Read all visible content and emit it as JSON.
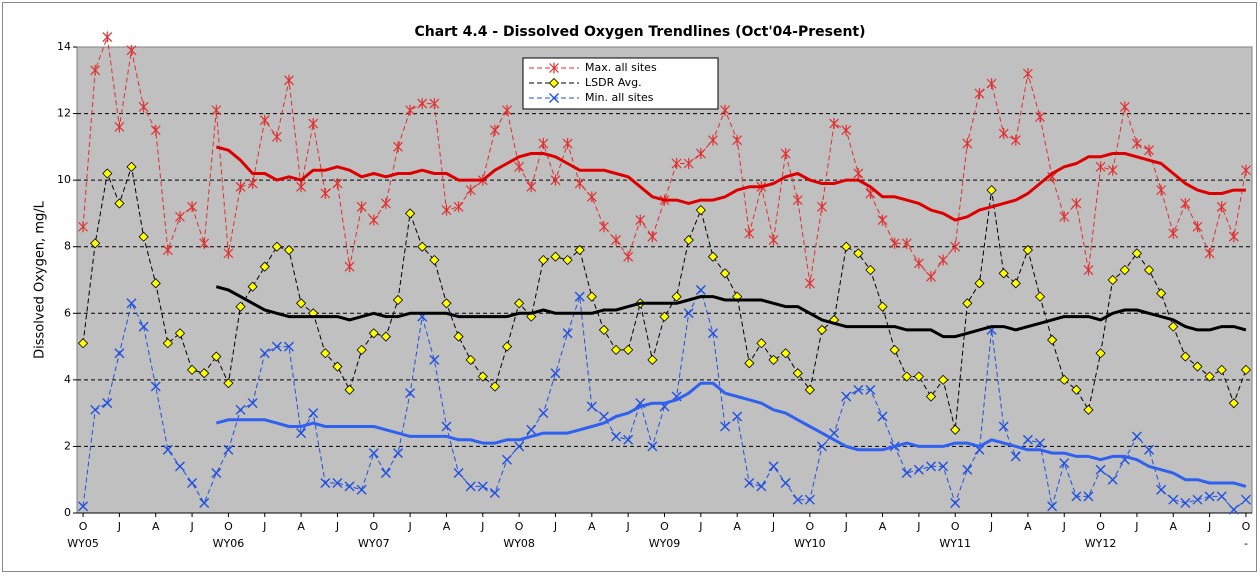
{
  "chart_data": {
    "type": "line",
    "title": "Chart 4.4 - Dissolved Oxygen Trendlines (Oct'04-Present)",
    "y_label": "Dissolved Oxygen, mg/L",
    "categories": [
      "O",
      null,
      null,
      "J",
      null,
      null,
      "A",
      null,
      null,
      "J",
      null,
      null,
      "O",
      null,
      null,
      "J",
      null,
      null,
      "A",
      null,
      null,
      "J",
      null,
      null,
      "O",
      null,
      null,
      "J",
      null,
      null,
      "A",
      null,
      null,
      "J",
      null,
      null,
      "O",
      null,
      null,
      "J",
      null,
      null,
      "A",
      null,
      null,
      "J",
      null,
      null,
      "O",
      null,
      null,
      "J",
      null,
      null,
      "A",
      null,
      null,
      "J",
      null,
      null,
      "O",
      null,
      null,
      "J",
      null,
      null,
      "A",
      null,
      null,
      "J",
      null,
      null,
      "O",
      null,
      null,
      "J",
      null,
      null,
      "A",
      null,
      null,
      "J",
      null,
      null,
      "O",
      null,
      null,
      "J",
      null,
      null,
      "A",
      null,
      null,
      "J",
      null,
      null,
      "O"
    ],
    "group_labels": [
      "WY05",
      "WY06",
      "WY07",
      "WY08",
      "WY09",
      "WY10",
      "WY11",
      "WY12",
      "-"
    ],
    "ylim": [
      0,
      14
    ],
    "yticks": [
      0,
      2,
      4,
      6,
      8,
      10,
      12,
      14
    ],
    "grid": true,
    "legend": "top",
    "series": [
      {
        "name": "Max. all sites",
        "color": "#e03030",
        "line_style": "dashed",
        "marker": "star",
        "values": [
          8.6,
          13.3,
          14.3,
          11.6,
          13.9,
          12.2,
          11.5,
          7.9,
          8.9,
          9.2,
          8.1,
          12.1,
          7.8,
          9.8,
          9.9,
          11.8,
          11.3,
          13.0,
          9.8,
          11.7,
          9.6,
          9.9,
          7.4,
          9.2,
          8.8,
          9.3,
          11.0,
          12.1,
          12.3,
          12.3,
          9.1,
          9.2,
          9.7,
          10.0,
          11.5,
          12.1,
          10.4,
          9.8,
          11.1,
          10.0,
          11.1,
          9.9,
          9.5,
          8.6,
          8.2,
          7.7,
          8.8,
          8.3,
          9.4,
          10.5,
          10.5,
          10.8,
          11.2,
          12.1,
          11.2,
          8.4,
          9.8,
          8.2,
          10.8,
          9.4,
          6.9,
          9.2,
          11.7,
          11.5,
          10.2,
          9.6,
          8.8,
          8.1,
          8.1,
          7.5,
          7.1,
          7.6,
          8.0,
          11.1,
          12.6,
          12.9,
          11.4,
          11.2,
          13.2,
          11.9,
          10.1,
          8.9,
          9.3,
          7.3,
          10.4,
          10.3,
          12.2,
          11.1,
          10.9,
          9.7,
          8.4,
          9.3,
          8.6,
          7.8,
          9.2,
          8.3,
          10.3
        ]
      },
      {
        "name": "LSDR Avg.",
        "color": "#000000",
        "line_style": "dashed",
        "marker": "diamond",
        "marker_fill": "#ffff00",
        "values": [
          5.1,
          8.1,
          10.2,
          9.3,
          10.4,
          8.3,
          6.9,
          5.1,
          5.4,
          4.3,
          4.2,
          4.7,
          3.9,
          6.2,
          6.8,
          7.4,
          8.0,
          7.9,
          6.3,
          6.0,
          4.8,
          4.4,
          3.7,
          4.9,
          5.4,
          5.3,
          6.4,
          9.0,
          8.0,
          7.6,
          6.3,
          5.3,
          4.6,
          4.1,
          3.8,
          5.0,
          6.3,
          5.9,
          7.6,
          7.7,
          7.6,
          7.9,
          6.5,
          5.5,
          4.9,
          4.9,
          6.3,
          4.6,
          5.9,
          6.5,
          8.2,
          9.1,
          7.7,
          7.2,
          6.5,
          4.5,
          5.1,
          4.6,
          4.8,
          4.2,
          3.7,
          5.5,
          5.8,
          8.0,
          7.8,
          7.3,
          6.2,
          4.9,
          4.1,
          4.1,
          3.5,
          4.0,
          2.5,
          6.3,
          6.9,
          9.7,
          7.2,
          6.9,
          7.9,
          6.5,
          5.2,
          4.0,
          3.7,
          3.1,
          4.8,
          7.0,
          7.3,
          7.8,
          7.3,
          6.6,
          5.6,
          4.7,
          4.4,
          4.1,
          4.3,
          3.3,
          4.3
        ]
      },
      {
        "name": "Min. all sites",
        "color": "#2050e0",
        "line_style": "dashed",
        "marker": "x",
        "values": [
          0.2,
          3.1,
          3.3,
          4.8,
          6.3,
          5.6,
          3.8,
          1.9,
          1.4,
          0.9,
          0.3,
          1.2,
          1.9,
          3.1,
          3.3,
          4.8,
          5.0,
          5.0,
          2.4,
          3.0,
          0.9,
          0.9,
          0.8,
          0.7,
          1.8,
          1.2,
          1.8,
          3.6,
          5.9,
          4.6,
          2.6,
          1.2,
          0.8,
          0.8,
          0.6,
          1.6,
          2.0,
          2.5,
          3.0,
          4.2,
          5.4,
          6.5,
          3.2,
          2.9,
          2.3,
          2.2,
          3.3,
          2.0,
          3.2,
          3.5,
          6.0,
          6.7,
          5.4,
          2.6,
          2.9,
          0.9,
          0.8,
          1.4,
          0.9,
          0.4,
          0.4,
          2.0,
          2.4,
          3.5,
          3.7,
          3.7,
          2.9,
          2.0,
          1.2,
          1.3,
          1.4,
          1.4,
          0.3,
          1.3,
          1.9,
          5.5,
          2.6,
          1.7,
          2.2,
          2.1,
          0.2,
          1.5,
          0.5,
          0.5,
          1.3,
          1.0,
          1.6,
          2.3,
          1.9,
          0.7,
          0.4,
          0.3,
          0.4,
          0.5,
          0.5,
          0.1,
          0.4
        ]
      },
      {
        "color": "#dd0000",
        "line_style": "solid",
        "marker": "none",
        "values": [
          null,
          null,
          null,
          null,
          null,
          null,
          null,
          null,
          null,
          null,
          null,
          11.0,
          10.9,
          10.6,
          10.2,
          10.2,
          10.0,
          10.1,
          10.0,
          10.3,
          10.3,
          10.4,
          10.3,
          10.1,
          10.2,
          10.1,
          10.2,
          10.2,
          10.3,
          10.2,
          10.2,
          10.0,
          10.0,
          10.0,
          10.3,
          10.5,
          10.7,
          10.8,
          10.8,
          10.7,
          10.5,
          10.3,
          10.3,
          10.3,
          10.2,
          10.1,
          9.8,
          9.5,
          9.4,
          9.4,
          9.3,
          9.4,
          9.4,
          9.5,
          9.7,
          9.8,
          9.8,
          9.9,
          10.1,
          10.2,
          10.0,
          9.9,
          9.9,
          10.0,
          10.0,
          9.8,
          9.5,
          9.5,
          9.4,
          9.3,
          9.1,
          9.0,
          8.8,
          8.9,
          9.1,
          9.2,
          9.3,
          9.4,
          9.6,
          9.9,
          10.2,
          10.4,
          10.5,
          10.7,
          10.7,
          10.8,
          10.8,
          10.7,
          10.6,
          10.5,
          10.2,
          9.9,
          9.7,
          9.6,
          9.6,
          9.7,
          9.7
        ]
      },
      {
        "color": "#000000",
        "line_style": "solid",
        "marker": "none",
        "values": [
          null,
          null,
          null,
          null,
          null,
          null,
          null,
          null,
          null,
          null,
          null,
          6.8,
          6.7,
          6.5,
          6.3,
          6.1,
          6.0,
          5.9,
          5.9,
          5.9,
          5.9,
          5.9,
          5.8,
          5.9,
          6.0,
          5.9,
          5.9,
          6.0,
          6.0,
          6.0,
          6.0,
          5.9,
          5.9,
          5.9,
          5.9,
          5.9,
          6.0,
          6.0,
          6.1,
          6.0,
          6.0,
          6.0,
          6.0,
          6.1,
          6.1,
          6.2,
          6.3,
          6.3,
          6.3,
          6.3,
          6.4,
          6.5,
          6.5,
          6.4,
          6.4,
          6.4,
          6.4,
          6.3,
          6.2,
          6.2,
          6.0,
          5.8,
          5.7,
          5.6,
          5.6,
          5.6,
          5.6,
          5.6,
          5.5,
          5.5,
          5.5,
          5.3,
          5.3,
          5.4,
          5.5,
          5.6,
          5.6,
          5.5,
          5.6,
          5.7,
          5.8,
          5.9,
          5.9,
          5.9,
          5.8,
          6.0,
          6.1,
          6.1,
          6.0,
          5.9,
          5.8,
          5.6,
          5.5,
          5.5,
          5.6,
          5.6,
          5.5
        ]
      },
      {
        "color": "#3060f0",
        "line_style": "solid",
        "marker": "none",
        "values": [
          null,
          null,
          null,
          null,
          null,
          null,
          null,
          null,
          null,
          null,
          null,
          2.7,
          2.8,
          2.8,
          2.8,
          2.8,
          2.7,
          2.6,
          2.6,
          2.7,
          2.6,
          2.6,
          2.6,
          2.6,
          2.6,
          2.5,
          2.4,
          2.3,
          2.3,
          2.3,
          2.3,
          2.2,
          2.2,
          2.1,
          2.1,
          2.2,
          2.2,
          2.3,
          2.4,
          2.4,
          2.4,
          2.5,
          2.6,
          2.7,
          2.9,
          3.0,
          3.2,
          3.3,
          3.3,
          3.4,
          3.6,
          3.9,
          3.9,
          3.6,
          3.5,
          3.4,
          3.3,
          3.1,
          3.0,
          2.8,
          2.6,
          2.4,
          2.2,
          2.0,
          1.9,
          1.9,
          1.9,
          2.0,
          2.1,
          2.0,
          2.0,
          2.0,
          2.1,
          2.1,
          2.0,
          2.2,
          2.1,
          2.0,
          1.9,
          1.9,
          1.8,
          1.8,
          1.7,
          1.7,
          1.6,
          1.7,
          1.7,
          1.6,
          1.4,
          1.3,
          1.2,
          1.0,
          1.0,
          0.9,
          0.9,
          0.9,
          0.8
        ]
      }
    ]
  }
}
